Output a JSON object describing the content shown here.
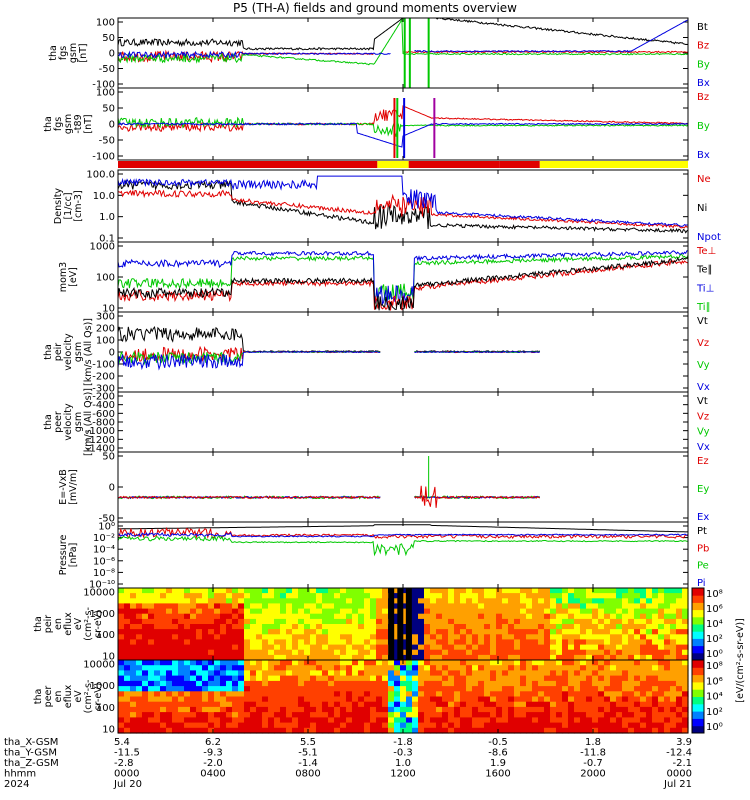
{
  "title": "P5 (TH-A) fields and ground moments overview",
  "colors": {
    "black": "#000000",
    "red": "#e00000",
    "green": "#00c800",
    "blue": "#0000e0",
    "yellow": "#ffff00"
  },
  "time_axis": {
    "xlabels": [
      [
        "5.4",
        "-11.5",
        "-2.8",
        "0000",
        "Jul 20"
      ],
      [
        "6.2",
        "-9.3",
        "-2.0",
        "0400",
        ""
      ],
      [
        "5.5",
        "-5.1",
        "-1.4",
        "0800",
        ""
      ],
      [
        "-1.8",
        "-0.3",
        "1.0",
        "1200",
        ""
      ],
      [
        "-0.5",
        "-8.6",
        "1.9",
        "1600",
        ""
      ],
      [
        "1.8",
        "-11.8",
        "-0.7",
        "2000",
        ""
      ],
      [
        "3.9",
        "-12.4",
        "-2.1",
        "0000",
        "Jul 21"
      ]
    ],
    "row_labels": [
      "tha_X-GSM",
      "tha_Y-GSM",
      "tha_Z-GSM",
      "hhmm",
      "2024"
    ]
  },
  "chart_data": [
    {
      "name": "fgs",
      "type": "line",
      "ylabel": [
        "tha",
        "fgs",
        "gsm",
        "[nT]"
      ],
      "yticks": [
        "100",
        "50",
        "0",
        "-50",
        "-100"
      ],
      "ylim": [
        -100,
        100
      ],
      "series": [
        {
          "name": "Bt",
          "color": "#000000"
        },
        {
          "name": "Bz",
          "color": "#e00000"
        },
        {
          "name": "By",
          "color": "#00c800"
        },
        {
          "name": "Bx",
          "color": "#0000e0"
        }
      ]
    },
    {
      "name": "fgs-t89",
      "type": "line",
      "ylabel": [
        "tha",
        "fgs",
        "gsm",
        "-t89",
        "[nT]"
      ],
      "yticks": [
        "100",
        "50",
        "0",
        "-50",
        "-100"
      ],
      "ylim": [
        -120,
        120
      ],
      "series": [
        {
          "name": "Bz",
          "color": "#e00000"
        },
        {
          "name": "By",
          "color": "#00c800"
        },
        {
          "name": "Bx",
          "color": "#0000e0"
        }
      ]
    },
    {
      "name": "density",
      "type": "line",
      "ylabel": [
        "Density",
        "[1/cc]",
        "[cm-3]"
      ],
      "yticks": [
        "100.0",
        "10.0",
        "1.0",
        "0.1"
      ],
      "scale": "log",
      "series": [
        {
          "name": "Ne",
          "color": "#e00000"
        },
        {
          "name": "Ni",
          "color": "#000000"
        },
        {
          "name": "Npot",
          "color": "#0000e0"
        }
      ]
    },
    {
      "name": "temperature",
      "type": "line",
      "ylabel": [
        "mom3",
        "[eV]"
      ],
      "yticks": [
        "1000",
        "100",
        "10"
      ],
      "scale": "log",
      "series": [
        {
          "name": "Te⊥",
          "color": "#e00000"
        },
        {
          "name": "Te∥",
          "color": "#000000"
        },
        {
          "name": "Ti⊥",
          "color": "#0000e0"
        },
        {
          "name": "Ti∥",
          "color": "#00c800"
        }
      ]
    },
    {
      "name": "peir-velocity",
      "type": "line",
      "ylabel": [
        "tha",
        "peir",
        "velocity",
        "gsm",
        "[km/s (All Qs)]"
      ],
      "yticks": [
        "300",
        "200",
        "100",
        "0",
        "-100",
        "-200",
        "-300"
      ],
      "ylim": [
        -300,
        300
      ],
      "series": [
        {
          "name": "Vt",
          "color": "#000000"
        },
        {
          "name": "Vz",
          "color": "#e00000"
        },
        {
          "name": "Vy",
          "color": "#00c800"
        },
        {
          "name": "Vx",
          "color": "#0000e0"
        }
      ]
    },
    {
      "name": "peer-velocity",
      "type": "line",
      "ylabel": [
        "tha",
        "peer",
        "velocity",
        "gsm",
        "[km/s (All Qs)]"
      ],
      "yticks": [
        "-200",
        "-400",
        "-600",
        "-800",
        "-1000",
        "-1200",
        "-1400"
      ],
      "ylim": [
        -1400,
        0
      ],
      "series": [
        {
          "name": "Vt",
          "color": "#000000"
        },
        {
          "name": "Vz",
          "color": "#e00000"
        },
        {
          "name": "Vy",
          "color": "#00c800"
        },
        {
          "name": "Vx",
          "color": "#0000e0"
        }
      ]
    },
    {
      "name": "efield",
      "type": "line",
      "ylabel": [
        "E=-VxB",
        "[mV/m]"
      ],
      "yticks": [
        "50",
        "0",
        "-50"
      ],
      "ylim": [
        -50,
        100
      ],
      "series": [
        {
          "name": "Ez",
          "color": "#e00000"
        },
        {
          "name": "Ey",
          "color": "#00c800"
        },
        {
          "name": "Ex",
          "color": "#0000e0"
        }
      ]
    },
    {
      "name": "pressure",
      "type": "line",
      "ylabel": [
        "Pressure",
        "[nPa]"
      ],
      "yticks": [
        "10⁰",
        "10⁻²",
        "10⁻⁴",
        "10⁻⁶",
        "10⁻⁸",
        "10⁻¹⁰"
      ],
      "scale": "log",
      "series": [
        {
          "name": "Pt",
          "color": "#000000"
        },
        {
          "name": "Pb",
          "color": "#e00000"
        },
        {
          "name": "Pe",
          "color": "#00c800"
        },
        {
          "name": "Pi",
          "color": "#0000e0"
        }
      ]
    },
    {
      "name": "peir-eflux",
      "type": "heatmap",
      "ylabel": [
        "tha",
        "peir",
        "en",
        "eflux",
        "eV",
        "(cm²-s-",
        "sr-eV)"
      ],
      "yticks": [
        "10000",
        "1000",
        "100",
        "10"
      ],
      "scale": "log"
    },
    {
      "name": "peer-eflux",
      "type": "heatmap",
      "ylabel": [
        "tha",
        "peer",
        "en",
        "eflux",
        "eV",
        "(cm²-s-",
        "sr-eV)"
      ],
      "yticks": [
        "10000",
        "1000",
        "100",
        "10"
      ],
      "scale": "log"
    }
  ],
  "colorbar": {
    "label": "[eV/(cm²-s-sr-eV)]",
    "upper_ticks": [
      "10⁸",
      "10⁶",
      "10⁴",
      "10²",
      "10⁰"
    ],
    "lower_ticks": [
      "10⁸",
      "10⁶",
      "10⁴",
      "10²",
      "10⁰"
    ]
  }
}
